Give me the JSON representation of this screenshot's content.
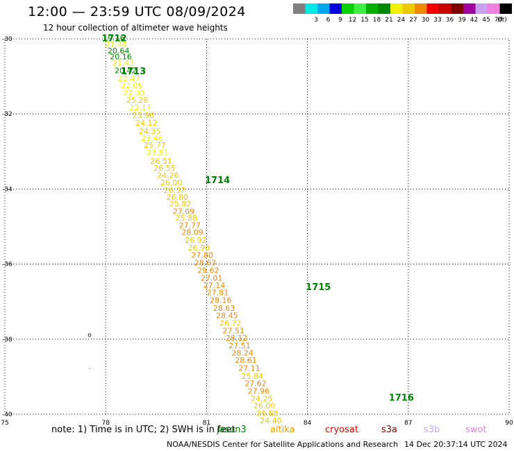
{
  "title": "12:00 — 23:59 UTC 08/09/2024",
  "subtitle": "12 hour collection of altimeter wave heights",
  "note": "note:  1) Time is in UTC; 2) SWH is in feet",
  "footer_credit": "NOAA/NESDIS Center for Satellite Applications and Research",
  "footer_timestamp": "14 Dec 20:37:14 UTC 2024",
  "satellites": [
    {
      "name": "jason3",
      "color": "#008000"
    },
    {
      "name": "altika",
      "color": "#f0a000"
    },
    {
      "name": "cryosat",
      "color": "#e00000"
    },
    {
      "name": "s3a",
      "color": "#900000"
    },
    {
      "name": "s3b",
      "color": "#c0a8f0"
    },
    {
      "name": "swot",
      "color": "#f080e0"
    }
  ],
  "colorbar": {
    "unit": "(ft)",
    "bins": [
      {
        "label": "",
        "color": "#808080"
      },
      {
        "label": "3",
        "color": "#00e8e8"
      },
      {
        "label": "6",
        "color": "#00a8f0"
      },
      {
        "label": "9",
        "color": "#0000e0"
      },
      {
        "label": "12",
        "color": "#00d000"
      },
      {
        "label": "15",
        "color": "#40f040"
      },
      {
        "label": "18",
        "color": "#00b000"
      },
      {
        "label": "21",
        "color": "#008800"
      },
      {
        "label": "24",
        "color": "#f0f000"
      },
      {
        "label": "27",
        "color": "#f0c800"
      },
      {
        "label": "30",
        "color": "#f08800"
      },
      {
        "label": "33",
        "color": "#f00000"
      },
      {
        "label": "36",
        "color": "#c80000"
      },
      {
        "label": "39",
        "color": "#800000"
      },
      {
        "label": "42",
        "color": "#a000a0"
      },
      {
        "label": "45",
        "color": "#c8a0f0"
      },
      {
        "label": "70",
        "color": "#f080e0"
      },
      {
        "label": "",
        "color": "#000000"
      }
    ]
  },
  "chart_data": {
    "type": "scatter",
    "xlim": [
      75,
      90
    ],
    "ylim": [
      -40,
      -30
    ],
    "xticks": [
      "75",
      "78",
      "81",
      "84",
      "87",
      "90"
    ],
    "yticks": [
      "-30",
      "-32",
      "-34",
      "-36",
      "-38",
      "-40"
    ],
    "grid": true,
    "time_labels": [
      {
        "text": "1712",
        "lon": 77.88,
        "lat": -29.97
      },
      {
        "text": "1713",
        "lon": 78.45,
        "lat": -30.85
      },
      {
        "text": "1714",
        "lon": 80.95,
        "lat": -33.75
      },
      {
        "text": "1715",
        "lon": 83.95,
        "lat": -36.6
      },
      {
        "text": "1716",
        "lon": 86.42,
        "lat": -39.55
      }
    ],
    "track_points": [
      {
        "lon": 78.24,
        "lat": -29.97,
        "v": "19.16"
      },
      {
        "lon": 78.31,
        "lat": -30.14,
        "v": "21.48"
      },
      {
        "lon": 78.38,
        "lat": -30.31,
        "v": "20.64"
      },
      {
        "lon": 78.45,
        "lat": -30.47,
        "v": "20.16"
      },
      {
        "lon": 78.52,
        "lat": -30.64,
        "v": "21.43"
      },
      {
        "lon": 78.59,
        "lat": -30.84,
        "v": "20.42"
      },
      {
        "lon": 78.69,
        "lat": -31.05,
        "v": "22.47"
      },
      {
        "lon": 78.77,
        "lat": -31.24,
        "v": "22.06"
      },
      {
        "lon": 78.85,
        "lat": -31.43,
        "v": "22.35"
      },
      {
        "lon": 78.94,
        "lat": -31.63,
        "v": "25.26"
      },
      {
        "lon": 79.03,
        "lat": -31.83,
        "v": "22.17"
      },
      {
        "lon": 79.12,
        "lat": -32.03,
        "v": "25.90"
      },
      {
        "lon": 79.21,
        "lat": -32.24,
        "v": "24.12"
      },
      {
        "lon": 79.31,
        "lat": -32.46,
        "v": "24.35"
      },
      {
        "lon": 79.38,
        "lat": -32.64,
        "v": "23.46"
      },
      {
        "lon": 79.46,
        "lat": -32.83,
        "v": "25.77"
      },
      {
        "lon": 79.54,
        "lat": -33.02,
        "v": "23.81"
      },
      {
        "lon": 79.65,
        "lat": -33.25,
        "v": "26.51"
      },
      {
        "lon": 79.75,
        "lat": -33.44,
        "v": "26.55"
      },
      {
        "lon": 79.85,
        "lat": -33.63,
        "v": "24.26"
      },
      {
        "lon": 79.95,
        "lat": -33.83,
        "v": "26.00"
      },
      {
        "lon": 80.05,
        "lat": -34.03,
        "v": "26.37"
      },
      {
        "lon": 80.13,
        "lat": -34.21,
        "v": "26.80"
      },
      {
        "lon": 80.22,
        "lat": -34.39,
        "v": "25.82"
      },
      {
        "lon": 80.32,
        "lat": -34.59,
        "v": "27.09"
      },
      {
        "lon": 80.4,
        "lat": -34.77,
        "v": "25.88"
      },
      {
        "lon": 80.5,
        "lat": -34.96,
        "v": "27.77"
      },
      {
        "lon": 80.58,
        "lat": -35.15,
        "v": "28.09"
      },
      {
        "lon": 80.68,
        "lat": -35.36,
        "v": "26.92"
      },
      {
        "lon": 80.77,
        "lat": -35.56,
        "v": "26.90"
      },
      {
        "lon": 80.87,
        "lat": -35.76,
        "v": "27.80"
      },
      {
        "lon": 80.96,
        "lat": -35.96,
        "v": "28.63"
      },
      {
        "lon": 81.05,
        "lat": -36.16,
        "v": "29.62"
      },
      {
        "lon": 81.15,
        "lat": -36.37,
        "v": "27.01"
      },
      {
        "lon": 81.23,
        "lat": -36.56,
        "v": "27.14"
      },
      {
        "lon": 81.33,
        "lat": -36.76,
        "v": "27.81"
      },
      {
        "lon": 81.42,
        "lat": -36.96,
        "v": "28.16"
      },
      {
        "lon": 81.52,
        "lat": -37.17,
        "v": "28.63"
      },
      {
        "lon": 81.61,
        "lat": -37.37,
        "v": "28.45"
      },
      {
        "lon": 81.71,
        "lat": -37.57,
        "v": "26.72"
      },
      {
        "lon": 81.8,
        "lat": -37.77,
        "v": "27.51"
      },
      {
        "lon": 81.89,
        "lat": -37.97,
        "v": "28.12"
      },
      {
        "lon": 81.98,
        "lat": -38.17,
        "v": "27.51"
      },
      {
        "lon": 82.07,
        "lat": -38.36,
        "v": "28.24"
      },
      {
        "lon": 82.17,
        "lat": -38.56,
        "v": "28.61"
      },
      {
        "lon": 82.27,
        "lat": -38.77,
        "v": "27.11"
      },
      {
        "lon": 82.36,
        "lat": -38.98,
        "v": "25.84"
      },
      {
        "lon": 82.46,
        "lat": -39.18,
        "v": "27.62"
      },
      {
        "lon": 82.55,
        "lat": -39.38,
        "v": "27.96"
      },
      {
        "lon": 82.64,
        "lat": -39.58,
        "v": "24.25"
      },
      {
        "lon": 82.72,
        "lat": -39.77,
        "v": "26.00"
      },
      {
        "lon": 82.81,
        "lat": -39.97,
        "v": "26.88"
      },
      {
        "lon": 82.91,
        "lat": -40.17,
        "v": "24.40"
      }
    ],
    "extra_marks": [
      {
        "text": "o",
        "lon": 77.52,
        "lat": -37.88
      },
      {
        "text": ".",
        "lon": 77.52,
        "lat": -38.73
      }
    ]
  }
}
